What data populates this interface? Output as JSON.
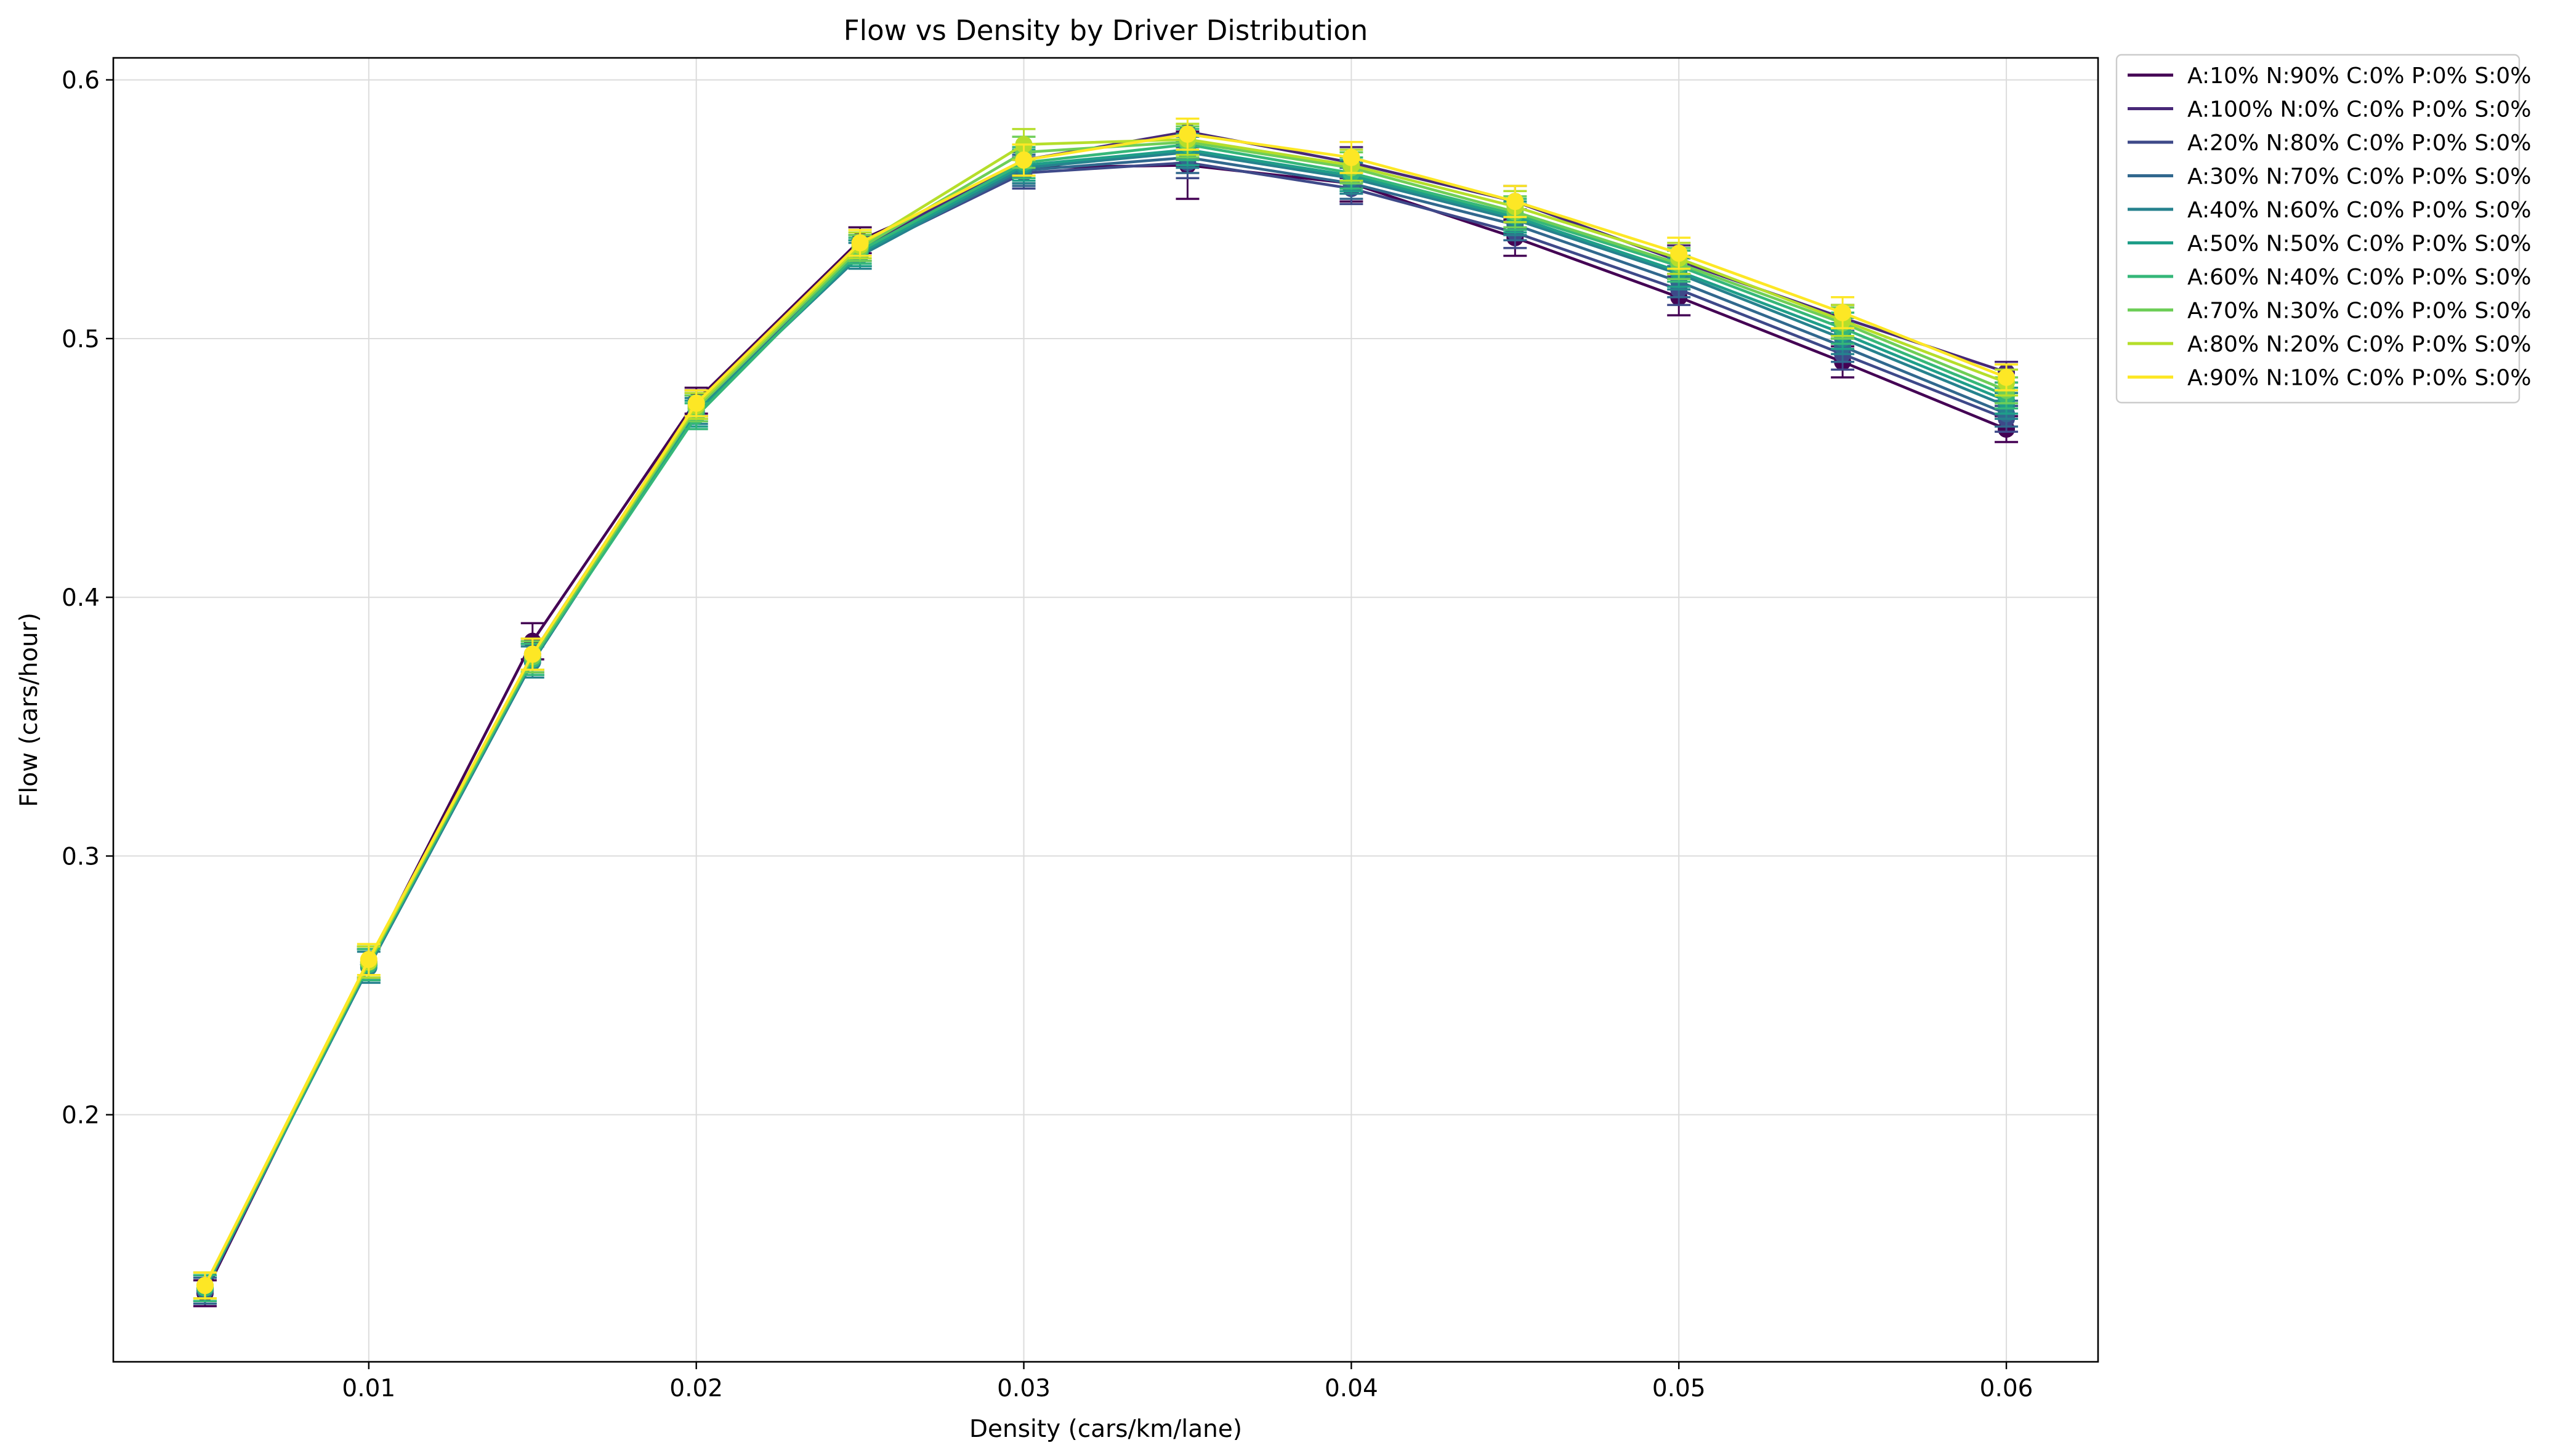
{
  "chart_data": {
    "type": "line",
    "title": "Flow vs Density by Driver Distribution",
    "xlabel": "Density (cars/km/lane)",
    "ylabel": "Flow (cars/hour)",
    "xlim": [
      0.0022,
      0.0628
    ],
    "ylim": [
      0.1045,
      0.6085
    ],
    "x_ticks": [
      0.01,
      0.02,
      0.03,
      0.04,
      0.05,
      0.06
    ],
    "x_tick_labels": [
      "0.01",
      "0.02",
      "0.03",
      "0.04",
      "0.05",
      "0.06"
    ],
    "y_ticks": [
      0.2,
      0.3,
      0.4,
      0.5,
      0.6
    ],
    "y_tick_labels": [
      "0.2",
      "0.3",
      "0.4",
      "0.5",
      "0.6"
    ],
    "grid": true,
    "legend_position": "outside-right-top",
    "markers": "circle with error bars",
    "x": [
      0.005,
      0.01,
      0.015,
      0.02,
      0.025,
      0.03,
      0.035,
      0.04,
      0.045,
      0.05,
      0.055,
      0.06
    ],
    "series": [
      {
        "name": "A:10% N:90% C:0% P:0% S:0%",
        "color": "#440154",
        "values": [
          0.131,
          0.259,
          0.383,
          0.476,
          0.538,
          0.566,
          0.567,
          0.56,
          0.539,
          0.516,
          0.491,
          0.465
        ],
        "errors": [
          0.005,
          0.006,
          0.007,
          0.005,
          0.005,
          0.006,
          0.013,
          0.007,
          0.007,
          0.007,
          0.006,
          0.005
        ]
      },
      {
        "name": "A:100% N:0% C:0% P:0% S:0%",
        "color": "#482878",
        "values": [
          0.133,
          0.258,
          0.378,
          0.475,
          0.535,
          0.569,
          0.58,
          0.568,
          0.553,
          0.53,
          0.508,
          0.487
        ],
        "errors": [
          0.005,
          0.006,
          0.006,
          0.005,
          0.005,
          0.006,
          0.005,
          0.006,
          0.006,
          0.006,
          0.005,
          0.004
        ]
      },
      {
        "name": "A:20% N:80% C:0% P:0% S:0%",
        "color": "#3e4989",
        "values": [
          0.132,
          0.258,
          0.377,
          0.474,
          0.533,
          0.564,
          0.568,
          0.558,
          0.541,
          0.519,
          0.494,
          0.469
        ],
        "errors": [
          0.005,
          0.006,
          0.006,
          0.005,
          0.005,
          0.006,
          0.006,
          0.006,
          0.006,
          0.006,
          0.006,
          0.005
        ]
      },
      {
        "name": "A:30% N:70% C:0% P:0% S:0%",
        "color": "#31688e",
        "values": [
          0.132,
          0.258,
          0.376,
          0.473,
          0.533,
          0.565,
          0.57,
          0.56,
          0.544,
          0.522,
          0.497,
          0.471
        ],
        "errors": [
          0.005,
          0.006,
          0.006,
          0.005,
          0.005,
          0.006,
          0.006,
          0.006,
          0.006,
          0.006,
          0.006,
          0.005
        ]
      },
      {
        "name": "A:40% N:60% C:0% P:0% S:0%",
        "color": "#26828e",
        "values": [
          0.133,
          0.257,
          0.375,
          0.472,
          0.532,
          0.566,
          0.572,
          0.562,
          0.546,
          0.525,
          0.5,
          0.474
        ],
        "errors": [
          0.005,
          0.006,
          0.006,
          0.005,
          0.005,
          0.006,
          0.006,
          0.006,
          0.006,
          0.006,
          0.006,
          0.005
        ]
      },
      {
        "name": "A:50% N:50% C:0% P:0% S:0%",
        "color": "#1f9e89",
        "values": [
          0.133,
          0.258,
          0.376,
          0.471,
          0.533,
          0.567,
          0.573,
          0.563,
          0.547,
          0.526,
          0.502,
          0.476
        ],
        "errors": [
          0.005,
          0.006,
          0.006,
          0.005,
          0.005,
          0.006,
          0.006,
          0.006,
          0.006,
          0.006,
          0.006,
          0.005
        ]
      },
      {
        "name": "A:60% N:40% C:0% P:0% S:0%",
        "color": "#35b779",
        "values": [
          0.133,
          0.258,
          0.376,
          0.47,
          0.534,
          0.568,
          0.575,
          0.564,
          0.548,
          0.528,
          0.504,
          0.478
        ],
        "errors": [
          0.005,
          0.006,
          0.006,
          0.005,
          0.005,
          0.006,
          0.006,
          0.006,
          0.006,
          0.006,
          0.006,
          0.005
        ]
      },
      {
        "name": "A:70% N:30% C:0% P:0% S:0%",
        "color": "#6ece58",
        "values": [
          0.134,
          0.259,
          0.377,
          0.473,
          0.535,
          0.572,
          0.576,
          0.566,
          0.549,
          0.529,
          0.506,
          0.48
        ],
        "errors": [
          0.005,
          0.006,
          0.006,
          0.005,
          0.005,
          0.006,
          0.006,
          0.006,
          0.006,
          0.006,
          0.006,
          0.005
        ]
      },
      {
        "name": "A:80% N:20% C:0% P:0% S:0%",
        "color": "#b5de2b",
        "values": [
          0.134,
          0.259,
          0.378,
          0.474,
          0.536,
          0.575,
          0.577,
          0.567,
          0.551,
          0.531,
          0.507,
          0.483
        ],
        "errors": [
          0.005,
          0.006,
          0.006,
          0.005,
          0.005,
          0.006,
          0.006,
          0.006,
          0.006,
          0.006,
          0.006,
          0.005
        ]
      },
      {
        "name": "A:90% N:10% C:0% P:0% S:0%",
        "color": "#fde725",
        "values": [
          0.134,
          0.26,
          0.378,
          0.475,
          0.537,
          0.569,
          0.579,
          0.57,
          0.553,
          0.533,
          0.51,
          0.485
        ],
        "errors": [
          0.005,
          0.006,
          0.006,
          0.005,
          0.005,
          0.006,
          0.006,
          0.006,
          0.006,
          0.006,
          0.006,
          0.005
        ]
      }
    ]
  }
}
